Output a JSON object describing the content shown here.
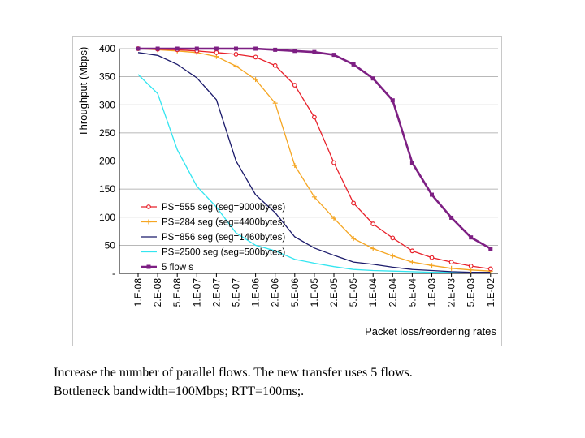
{
  "caption": {
    "line1": "Increase the number of parallel flows.  The new transfer uses 5 flows.",
    "line2": "Bottleneck bandwidth=100Mbps; RTT=100ms;."
  },
  "chart_data": {
    "type": "line",
    "title": "",
    "xlabel": "Packet loss/reordering rates",
    "ylabel": "Throughput (Mbps)",
    "ylim": [
      0,
      400
    ],
    "y_ticks": [
      "-",
      "50",
      "100",
      "150",
      "200",
      "250",
      "300",
      "350",
      "400"
    ],
    "grid": "horizontal",
    "legend_position": "lower-left inside plot",
    "categories": [
      "1.E-08",
      "2.E-08",
      "5.E-08",
      "1.E-07",
      "2.E-07",
      "5.E-07",
      "1.E-06",
      "2.E-06",
      "5.E-06",
      "1.E-05",
      "2.E-05",
      "5.E-05",
      "1.E-04",
      "2.E-04",
      "5.E-04",
      "1.E-03",
      "2.E-03",
      "5.E-03",
      "1.E-02"
    ],
    "series": [
      {
        "name": "PS=555 seg (seg=9000bytes)",
        "color": "#e8202a",
        "marker": "circle",
        "values": [
          400,
          399,
          398,
          396,
          393,
          390,
          385,
          370,
          335,
          278,
          197,
          125,
          88,
          63,
          40,
          28,
          20,
          13,
          8
        ]
      },
      {
        "name": "PS=284 seg (seg=4400bytes)",
        "color": "#f5a623",
        "marker": "plus",
        "values": [
          400,
          398,
          396,
          393,
          386,
          369,
          345,
          303,
          192,
          136,
          98,
          62,
          44,
          31,
          20,
          14,
          9,
          6,
          4
        ]
      },
      {
        "name": "PS=856 seg (seg=1460bytes)",
        "color": "#1b1a6b",
        "marker": "none",
        "values": [
          393,
          388,
          372,
          348,
          309,
          200,
          140,
          108,
          65,
          45,
          32,
          20,
          16,
          11,
          7,
          5,
          3,
          2,
          2
        ]
      },
      {
        "name": "PS=2500 seg (seg=500bytes)",
        "color": "#33e5f0",
        "marker": "none",
        "values": [
          354,
          320,
          220,
          155,
          118,
          72,
          50,
          40,
          25,
          18,
          12,
          7,
          5,
          4,
          3,
          2,
          2,
          1,
          1
        ]
      },
      {
        "name": "5 flow s",
        "color": "#7d1f83",
        "marker": "square",
        "values": [
          400,
          400,
          400,
          400,
          400,
          400,
          400,
          398,
          396,
          394,
          389,
          372,
          347,
          308,
          197,
          140,
          99,
          64,
          44
        ]
      }
    ]
  }
}
